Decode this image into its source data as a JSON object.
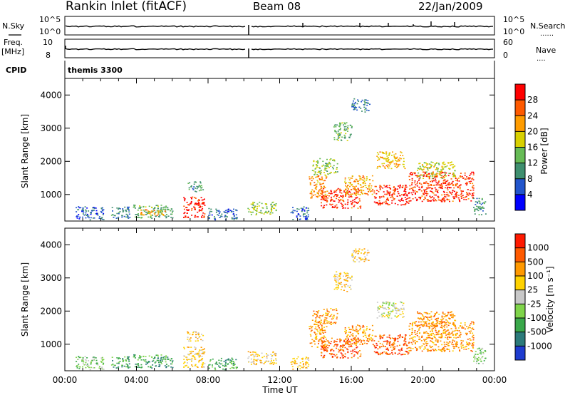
{
  "header": {
    "site": "Rankin Inlet (fitACF)",
    "beam": "Beam 08",
    "date": "22/Jan/2009"
  },
  "noise_panel": {
    "left_label": "N.Sky",
    "right_label": "N.Search",
    "left_ticks": [
      "10^5",
      "10^0"
    ],
    "right_ticks": [
      "10^5",
      "10^0"
    ]
  },
  "freq_panel": {
    "left_label_1": "Freq.",
    "left_label_2": "[MHz]",
    "right_label": "Nave",
    "left_ticks": [
      "10",
      "8"
    ],
    "right_ticks": [
      "60",
      "0"
    ]
  },
  "cpid": {
    "label": "CPID",
    "value": "themis 3300"
  },
  "x_axis": {
    "title": "Time UT",
    "ticks": [
      "00:00",
      "04:00",
      "08:00",
      "12:00",
      "16:00",
      "20:00",
      "00:00"
    ],
    "range_hours": [
      0,
      24
    ]
  },
  "colors": {
    "frame": "#000000",
    "background": "#ffffff"
  },
  "chart_data": [
    {
      "type": "heatmap",
      "title": "",
      "xlabel": "Time UT",
      "ylabel": "Slant Range [km]",
      "y_ticks": [
        "1000",
        "2000",
        "3000",
        "4000"
      ],
      "ylim": [
        200,
        4500
      ],
      "xlim_hours": [
        0,
        24
      ],
      "colorbar": {
        "label": "Power [dB]",
        "ticks": [
          "4",
          "8",
          "12",
          "16",
          "20",
          "24",
          "28"
        ],
        "range": [
          0,
          30
        ],
        "colors": [
          "#0000ff",
          "#2255cc",
          "#3f8f6f",
          "#66bb55",
          "#d8d000",
          "#ff9c00",
          "#ff5a00",
          "#ff0000"
        ]
      },
      "regions": [
        {
          "t0": 0.6,
          "t1": 2.2,
          "r0": 250,
          "r1": 650,
          "v": 6
        },
        {
          "t0": 2.5,
          "t1": 3.6,
          "r0": 300,
          "r1": 650,
          "v": 8
        },
        {
          "t0": 3.8,
          "t1": 6.0,
          "r0": 300,
          "r1": 700,
          "v": 12
        },
        {
          "t0": 4.2,
          "t1": 5.6,
          "r0": 380,
          "r1": 560,
          "v": 20
        },
        {
          "t0": 6.6,
          "t1": 7.8,
          "r0": 300,
          "r1": 950,
          "v": 28
        },
        {
          "t0": 6.8,
          "t1": 7.7,
          "r0": 1100,
          "r1": 1400,
          "v": 10
        },
        {
          "t0": 8.0,
          "t1": 9.6,
          "r0": 250,
          "r1": 600,
          "v": 7
        },
        {
          "t0": 10.2,
          "t1": 11.8,
          "r0": 400,
          "r1": 800,
          "v": 14
        },
        {
          "t0": 12.6,
          "t1": 13.6,
          "r0": 250,
          "r1": 650,
          "v": 6
        },
        {
          "t0": 13.6,
          "t1": 14.6,
          "r0": 900,
          "r1": 1600,
          "v": 22
        },
        {
          "t0": 13.8,
          "t1": 15.2,
          "r0": 1600,
          "r1": 2100,
          "v": 14
        },
        {
          "t0": 14.2,
          "t1": 16.5,
          "r0": 600,
          "r1": 1200,
          "v": 26
        },
        {
          "t0": 15.6,
          "t1": 17.2,
          "r0": 1000,
          "r1": 1600,
          "v": 20
        },
        {
          "t0": 17.2,
          "t1": 19.2,
          "r0": 700,
          "r1": 1300,
          "v": 27
        },
        {
          "t0": 17.4,
          "t1": 19.0,
          "r0": 1800,
          "r1": 2300,
          "v": 19
        },
        {
          "t0": 19.2,
          "t1": 22.8,
          "r0": 800,
          "r1": 1700,
          "v": 26
        },
        {
          "t0": 19.6,
          "t1": 21.8,
          "r0": 1500,
          "r1": 2000,
          "v": 16
        },
        {
          "t0": 16.0,
          "t1": 17.0,
          "r0": 3500,
          "r1": 3900,
          "v": 8
        },
        {
          "t0": 15.0,
          "t1": 16.0,
          "r0": 2600,
          "r1": 3200,
          "v": 12
        },
        {
          "t0": 22.8,
          "t1": 23.5,
          "r0": 400,
          "r1": 900,
          "v": 10
        }
      ]
    },
    {
      "type": "heatmap",
      "title": "",
      "xlabel": "Time UT",
      "ylabel": "Slant Range [km]",
      "y_ticks": [
        "1000",
        "2000",
        "3000",
        "4000"
      ],
      "ylim": [
        200,
        4500
      ],
      "xlim_hours": [
        0,
        24
      ],
      "colorbar": {
        "label": "Velocity [m s⁻¹]",
        "ticks": [
          "1000",
          "500",
          "100",
          "25",
          "-25",
          "-100",
          "-500",
          "-1000"
        ],
        "colors": [
          "#1e3ccf",
          "#2b7a7a",
          "#3aa84a",
          "#7fd44a",
          "#c8c8c8",
          "#ffd200",
          "#ff9900",
          "#ff5a00",
          "#ff1a00"
        ]
      },
      "regions": [
        {
          "t0": 0.6,
          "t1": 2.2,
          "r0": 250,
          "r1": 650,
          "v": 3
        },
        {
          "t0": 2.5,
          "t1": 3.6,
          "r0": 300,
          "r1": 650,
          "v": 2
        },
        {
          "t0": 3.8,
          "t1": 6.0,
          "r0": 300,
          "r1": 700,
          "v": 2
        },
        {
          "t0": 6.6,
          "t1": 7.8,
          "r0": 300,
          "r1": 950,
          "v": 5
        },
        {
          "t0": 6.8,
          "t1": 7.7,
          "r0": 1100,
          "r1": 1400,
          "v": 5
        },
        {
          "t0": 8.0,
          "t1": 9.6,
          "r0": 250,
          "r1": 600,
          "v": 2
        },
        {
          "t0": 10.2,
          "t1": 11.8,
          "r0": 400,
          "r1": 800,
          "v": 5
        },
        {
          "t0": 12.6,
          "t1": 13.6,
          "r0": 250,
          "r1": 650,
          "v": 5
        },
        {
          "t0": 13.6,
          "t1": 14.6,
          "r0": 900,
          "r1": 1600,
          "v": 6
        },
        {
          "t0": 13.8,
          "t1": 15.2,
          "r0": 1600,
          "r1": 2100,
          "v": 6
        },
        {
          "t0": 14.2,
          "t1": 16.5,
          "r0": 600,
          "r1": 1200,
          "v": 7
        },
        {
          "t0": 15.6,
          "t1": 17.2,
          "r0": 1000,
          "r1": 1600,
          "v": 6
        },
        {
          "t0": 17.2,
          "t1": 19.2,
          "r0": 700,
          "r1": 1300,
          "v": 7
        },
        {
          "t0": 17.4,
          "t1": 19.0,
          "r0": 1800,
          "r1": 2300,
          "v": 4
        },
        {
          "t0": 19.2,
          "t1": 22.8,
          "r0": 800,
          "r1": 1700,
          "v": 6
        },
        {
          "t0": 19.6,
          "t1": 21.8,
          "r0": 1500,
          "r1": 2000,
          "v": 6
        },
        {
          "t0": 16.0,
          "t1": 17.0,
          "r0": 3500,
          "r1": 3900,
          "v": 5
        },
        {
          "t0": 15.0,
          "t1": 16.0,
          "r0": 2600,
          "r1": 3200,
          "v": 5
        },
        {
          "t0": 22.8,
          "t1": 23.5,
          "r0": 400,
          "r1": 900,
          "v": 3
        }
      ]
    }
  ]
}
